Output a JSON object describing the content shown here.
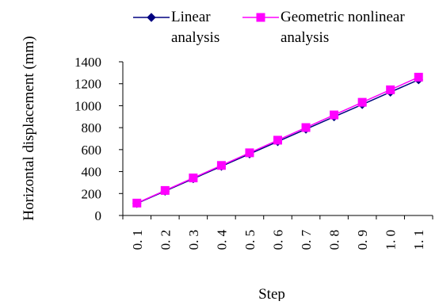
{
  "chart_data": {
    "type": "line",
    "title": "",
    "xlabel": "Step",
    "ylabel": "Horizontal displacement (mm)",
    "categories": [
      "0.1",
      "0.2",
      "0.3",
      "0.4",
      "0.5",
      "0.6",
      "0.7",
      "0.8",
      "0.9",
      "1.0",
      "1.1"
    ],
    "category_labels": [
      "0. 1",
      "0. 2",
      "0. 3",
      "0. 4",
      "0. 5",
      "0. 6",
      "0. 7",
      "0. 8",
      "0. 9",
      "1. 0",
      "1. 1"
    ],
    "ylim": [
      0,
      1400
    ],
    "yticks": [
      0,
      200,
      400,
      600,
      800,
      1000,
      1200,
      1400
    ],
    "grid": false,
    "legend_position": "top",
    "series": [
      {
        "name_lines": [
          "Linear",
          "analysis"
        ],
        "color": "#000080",
        "marker": "diamond",
        "values": [
          110,
          222,
          335,
          448,
          561,
          673,
          786,
          899,
          1011,
          1124,
          1236
        ]
      },
      {
        "name_lines": [
          "Geometric nonlinear",
          "analysis"
        ],
        "color": "#ff00ff",
        "marker": "square",
        "values": [
          113,
          228,
          342,
          456,
          571,
          686,
          801,
          916,
          1031,
          1145,
          1260
        ]
      }
    ]
  }
}
